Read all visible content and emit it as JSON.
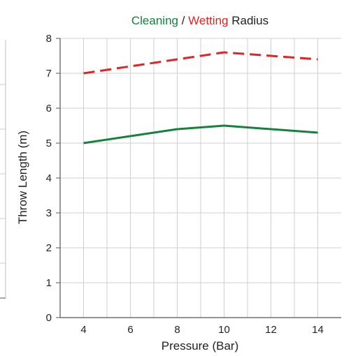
{
  "chart_data": {
    "type": "line",
    "title_parts": [
      {
        "text": "Cleaning",
        "color": "#14823c"
      },
      {
        "text": " / ",
        "color": "#222222"
      },
      {
        "text": "Wetting",
        "color": "#e02424"
      },
      {
        "text": " Radius",
        "color": "#222222"
      }
    ],
    "xlabel": "Pressure (Bar)",
    "ylabel": "Throw Length (m)",
    "xlim": [
      3,
      15
    ],
    "ylim": [
      0,
      8
    ],
    "x_ticks": [
      4,
      6,
      8,
      10,
      12,
      14
    ],
    "y_ticks": [
      0,
      1,
      2,
      3,
      4,
      5,
      6,
      7,
      8
    ],
    "x_grid": [
      4,
      5,
      6,
      7,
      8,
      9,
      10,
      11,
      12,
      13,
      14
    ],
    "y_grid": [
      1,
      2,
      3,
      4,
      5,
      6,
      7,
      8
    ],
    "grid": true,
    "series": [
      {
        "key": "wetting",
        "color": "#e02424",
        "dashed": true,
        "x": [
          4,
          8,
          10,
          14
        ],
        "values": [
          7.0,
          7.4,
          7.6,
          7.4
        ]
      },
      {
        "key": "cleaning",
        "color": "#14823c",
        "dashed": false,
        "x": [
          4,
          8,
          10,
          14
        ],
        "values": [
          5.0,
          5.4,
          5.5,
          5.3
        ]
      }
    ]
  }
}
